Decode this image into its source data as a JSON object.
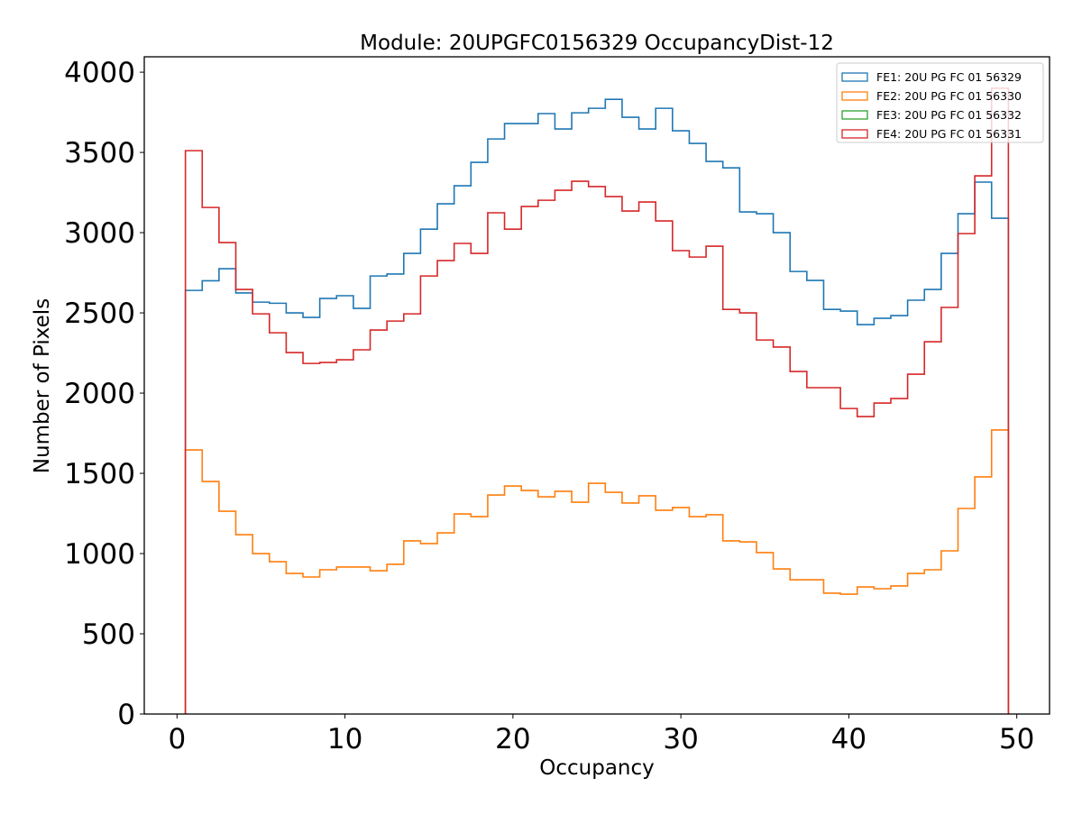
{
  "chart_data": {
    "type": "histogram-step",
    "title": "Module: 20UPGFC0156329 OccupancyDist-12",
    "xlabel": "Occupancy",
    "ylabel": "Number of Pixels",
    "xlim": [
      -1.95,
      51.95
    ],
    "ylim": [
      0,
      4096
    ],
    "xticks": [
      0,
      10,
      20,
      30,
      40,
      50
    ],
    "yticks": [
      0,
      500,
      1000,
      1500,
      2000,
      2500,
      3000,
      3500,
      4000
    ],
    "bin_edges_start": 0.5,
    "bin_width": 1,
    "grid": false,
    "legend_position": "top-right",
    "series": [
      {
        "name": "FE1: 20U PG FC 01 56329",
        "color": "#1f77b4",
        "values": [
          2640,
          2700,
          2775,
          2624,
          2567,
          2560,
          2500,
          2472,
          2590,
          2607,
          2528,
          2730,
          2742,
          2871,
          3022,
          3180,
          3292,
          3438,
          3584,
          3680,
          3680,
          3742,
          3646,
          3747,
          3775,
          3831,
          3719,
          3646,
          3775,
          3635,
          3556,
          3444,
          3404,
          3129,
          3118,
          3000,
          2758,
          2702,
          2522,
          2511,
          2427,
          2466,
          2483,
          2579,
          2646,
          2871,
          3118,
          3315,
          3090
        ]
      },
      {
        "name": "FE2: 20U PG FC 01 56330",
        "color": "#ff7f0e",
        "values": [
          1646,
          1449,
          1264,
          1118,
          1000,
          949,
          876,
          854,
          899,
          916,
          916,
          893,
          933,
          1079,
          1062,
          1129,
          1247,
          1230,
          1365,
          1421,
          1393,
          1354,
          1388,
          1320,
          1438,
          1382,
          1315,
          1360,
          1270,
          1287,
          1230,
          1242,
          1079,
          1073,
          1006,
          904,
          837,
          837,
          753,
          747,
          792,
          781,
          798,
          876,
          899,
          1017,
          1281,
          1478,
          1770
        ]
      },
      {
        "name": "FE3: 20U PG FC 01 56332",
        "color": "#2ca02c",
        "values": []
      },
      {
        "name": "FE4: 20U PG FC 01 56331",
        "color": "#d62728",
        "values": [
          3511,
          3157,
          2938,
          2646,
          2494,
          2376,
          2253,
          2185,
          2191,
          2208,
          2270,
          2393,
          2449,
          2494,
          2730,
          2826,
          2933,
          2871,
          3124,
          3022,
          3163,
          3202,
          3264,
          3320,
          3287,
          3225,
          3135,
          3191,
          3073,
          2888,
          2848,
          2916,
          2522,
          2500,
          2331,
          2287,
          2135,
          2034,
          2034,
          1904,
          1854,
          1938,
          1966,
          2118,
          2320,
          2534,
          2994,
          3354,
          3900
        ]
      }
    ]
  }
}
